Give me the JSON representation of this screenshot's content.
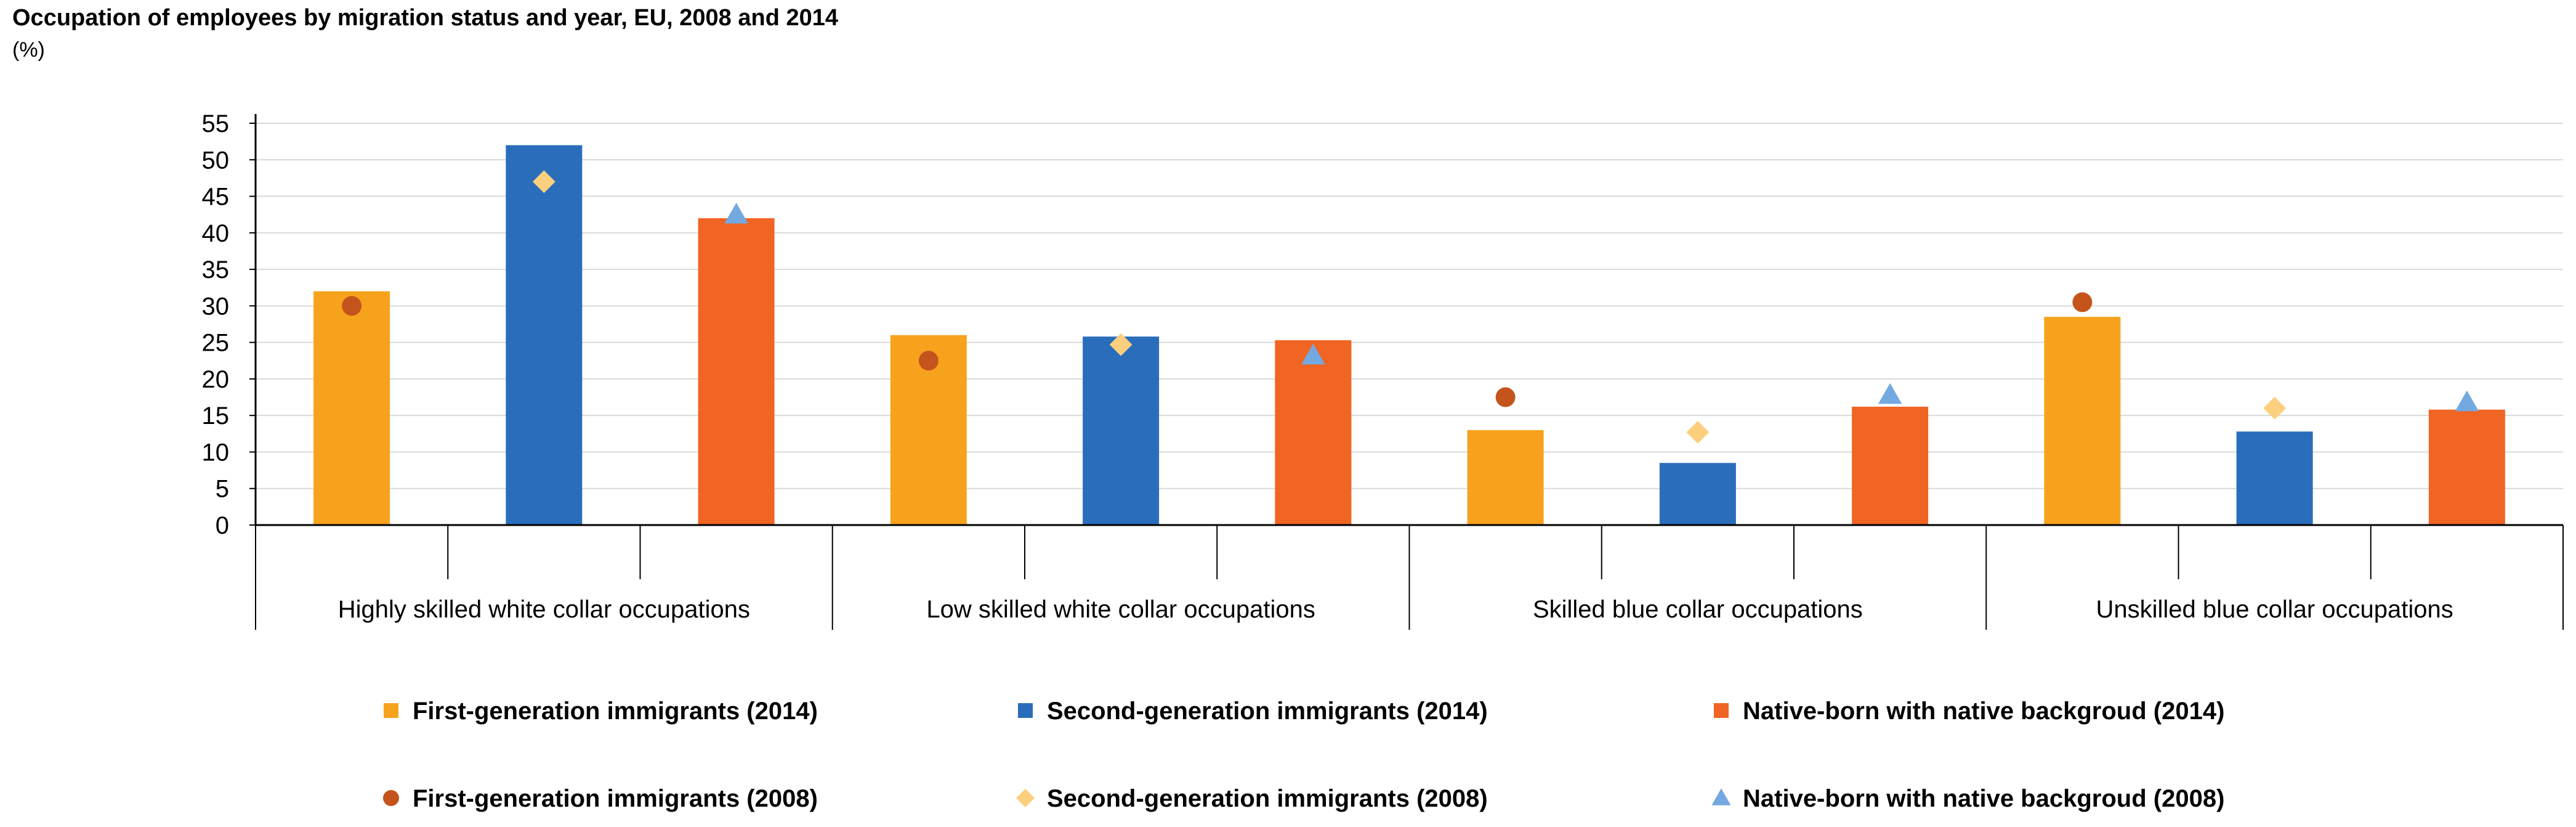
{
  "chart_data": {
    "type": "bar",
    "title": "Occupation of employees by migration status and year, EU, 2008 and 2014",
    "unit": "(%)",
    "ylim": [
      0,
      55
    ],
    "yticks": [
      0,
      5,
      10,
      15,
      20,
      25,
      30,
      35,
      40,
      45,
      50,
      55
    ],
    "grid": true,
    "categories": [
      "Highly skilled white collar occupations",
      "Low skilled white collar occupations",
      "Skilled blue collar occupations",
      "Unskilled blue collar occupations"
    ],
    "series": [
      {
        "name": "First-generation immigrants (2014)",
        "kind": "bar",
        "color": "#f7a21d",
        "values": [
          32,
          26,
          13,
          28.5
        ]
      },
      {
        "name": "Second-generation immigrants (2014)",
        "kind": "bar",
        "color": "#2a6ebb",
        "values": [
          52,
          25.8,
          8.5,
          12.8
        ]
      },
      {
        "name": "Native-born with native backgroud (2014)",
        "kind": "bar",
        "color": "#f06424",
        "values": [
          42,
          25.3,
          16.2,
          15.8
        ]
      },
      {
        "name": "First-generation immigrants (2008)",
        "kind": "marker",
        "marker": "circle",
        "color": "#c4541c",
        "values": [
          30,
          22.5,
          17.5,
          30.5
        ]
      },
      {
        "name": "Second-generation immigrants (2008)",
        "kind": "marker",
        "marker": "diamond",
        "color": "#fbcf7e",
        "values": [
          47,
          24.7,
          12.7,
          16
        ]
      },
      {
        "name": "Native-born with native backgroud (2008)",
        "kind": "marker",
        "marker": "triangle",
        "color": "#73a9e0",
        "values": [
          42.5,
          23.2,
          17.8,
          16.8
        ]
      }
    ],
    "legend_position": "bottom"
  }
}
